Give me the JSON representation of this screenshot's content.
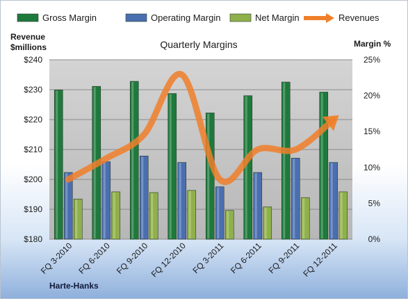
{
  "company": "Harte-Hanks",
  "chart_data": {
    "type": "bar",
    "title": "Quarterly Margins",
    "y_left_label": [
      "Revenue",
      "$millions"
    ],
    "y_right_label": "Margin %",
    "categories": [
      "FQ 3-2010",
      "FQ 6-2010",
      "FQ 9-2010",
      "FQ 12-2010",
      "FQ 3-2011",
      "FQ 6-2011",
      "FQ 9-2011",
      "FQ 12-2011"
    ],
    "y_left_range": [
      180,
      240
    ],
    "y_left_ticks": [
      "$180",
      "$190",
      "$200",
      "$210",
      "$220",
      "$230",
      "$240"
    ],
    "y_right_range": [
      0,
      25
    ],
    "y_right_ticks": [
      "0%",
      "5%",
      "10%",
      "15%",
      "20%",
      "25%"
    ],
    "series": [
      {
        "name": "Gross Margin",
        "type": "bar",
        "axis": "right",
        "color": "#1e7a3c",
        "values": [
          20.8,
          21.3,
          22.0,
          20.3,
          17.6,
          20.0,
          21.9,
          20.5
        ]
      },
      {
        "name": "Operating Margin",
        "type": "bar",
        "axis": "right",
        "color": "#4a6fb0",
        "values": [
          9.3,
          10.8,
          11.6,
          10.7,
          7.3,
          9.3,
          11.3,
          10.7
        ]
      },
      {
        "name": "Net Margin",
        "type": "bar",
        "axis": "right",
        "color": "#8fb04a",
        "values": [
          5.6,
          6.6,
          6.5,
          6.8,
          4.0,
          4.5,
          5.8,
          6.6
        ]
      },
      {
        "name": "Revenues",
        "type": "line",
        "axis": "left",
        "color": "#f07f2a",
        "values": [
          200,
          207,
          215,
          235,
          200,
          210,
          210,
          220
        ]
      }
    ],
    "grid": true,
    "legend_position": "top"
  }
}
